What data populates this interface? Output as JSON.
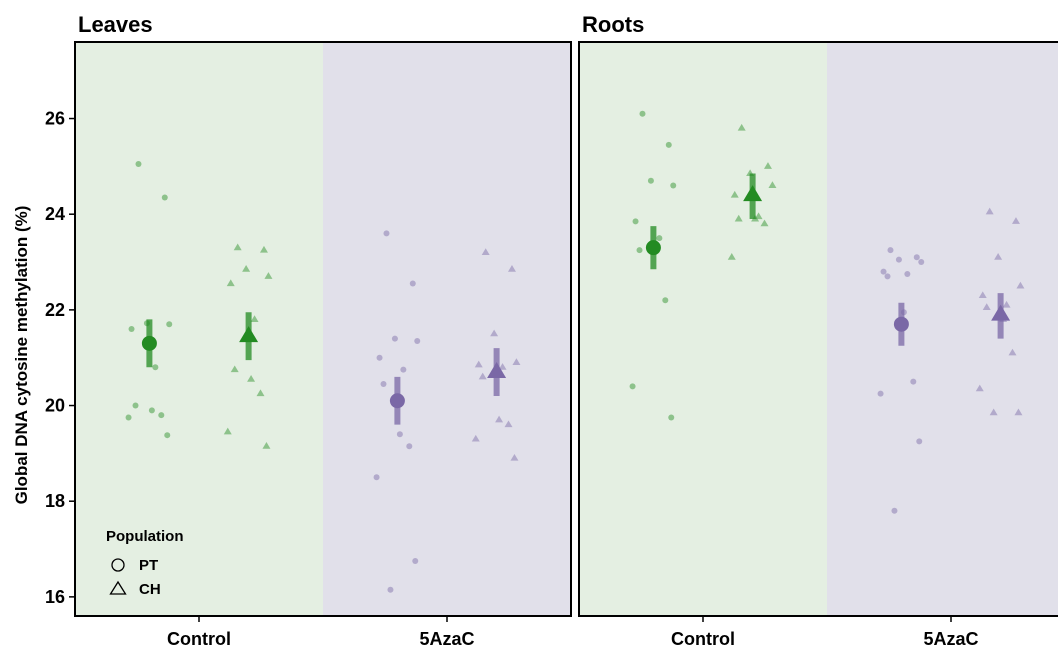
{
  "chart_data": {
    "type": "scatter",
    "ylabel": "Global DNA cytosine methylation (%)",
    "ylim": [
      15.6,
      27.6
    ],
    "yticks": [
      16,
      18,
      20,
      22,
      24,
      26
    ],
    "categories": [
      "Control",
      "5AzaC"
    ],
    "groups": [
      "PT",
      "CH"
    ],
    "background_colors": {
      "Control": "#e4efe2",
      "5AzaC": "#e1e0ea"
    },
    "colors": {
      "Control": "#238b22",
      "5AzaC": "#7a68a6"
    },
    "legend": {
      "title": "Population",
      "position": "bottom-left",
      "items": [
        {
          "label": "PT",
          "shape": "circle"
        },
        {
          "label": "CH",
          "shape": "triangle"
        }
      ]
    },
    "panels": [
      {
        "title": "Leaves",
        "series": [
          {
            "category": "Control",
            "group": "PT",
            "mean": 21.3,
            "ci": [
              20.8,
              21.8
            ],
            "points": [
              25.05,
              24.35,
              21.72,
              21.7,
              21.6,
              20.8,
              20.0,
              19.9,
              19.8,
              19.75,
              19.38
            ]
          },
          {
            "category": "Control",
            "group": "CH",
            "mean": 21.45,
            "ci": [
              20.95,
              21.95
            ],
            "points": [
              23.3,
              23.25,
              22.85,
              22.7,
              22.55,
              21.8,
              20.75,
              20.55,
              20.25,
              19.45,
              19.15
            ]
          },
          {
            "category": "5AzaC",
            "group": "PT",
            "mean": 20.1,
            "ci": [
              19.6,
              20.6
            ],
            "points": [
              23.6,
              22.55,
              21.4,
              21.35,
              21.0,
              20.75,
              20.45,
              19.4,
              19.15,
              18.5,
              16.75,
              16.15
            ]
          },
          {
            "category": "5AzaC",
            "group": "CH",
            "mean": 20.7,
            "ci": [
              20.2,
              21.2
            ],
            "points": [
              23.2,
              22.85,
              21.5,
              20.9,
              20.85,
              20.8,
              20.6,
              19.7,
              19.6,
              19.3,
              18.9
            ]
          }
        ]
      },
      {
        "title": "Roots",
        "series": [
          {
            "category": "Control",
            "group": "PT",
            "mean": 23.3,
            "ci": [
              22.85,
              23.75
            ],
            "points": [
              26.1,
              25.45,
              24.7,
              24.6,
              23.85,
              23.5,
              23.25,
              23.25,
              22.2,
              20.4,
              19.75
            ]
          },
          {
            "category": "Control",
            "group": "CH",
            "mean": 24.4,
            "ci": [
              23.9,
              24.85
            ],
            "points": [
              25.8,
              25.0,
              24.85,
              24.6,
              24.4,
              23.95,
              23.9,
              23.9,
              23.8,
              23.1
            ]
          },
          {
            "category": "5AzaC",
            "group": "PT",
            "mean": 21.7,
            "ci": [
              21.25,
              22.15
            ],
            "points": [
              23.25,
              23.1,
              23.05,
              23.0,
              22.8,
              22.75,
              22.7,
              21.95,
              20.5,
              20.25,
              19.25,
              17.8
            ]
          },
          {
            "category": "5AzaC",
            "group": "CH",
            "mean": 21.9,
            "ci": [
              21.4,
              22.35
            ],
            "points": [
              24.05,
              23.85,
              23.1,
              22.5,
              22.3,
              22.1,
              22.05,
              21.8,
              21.1,
              20.35,
              19.85,
              19.85
            ]
          }
        ]
      }
    ]
  }
}
